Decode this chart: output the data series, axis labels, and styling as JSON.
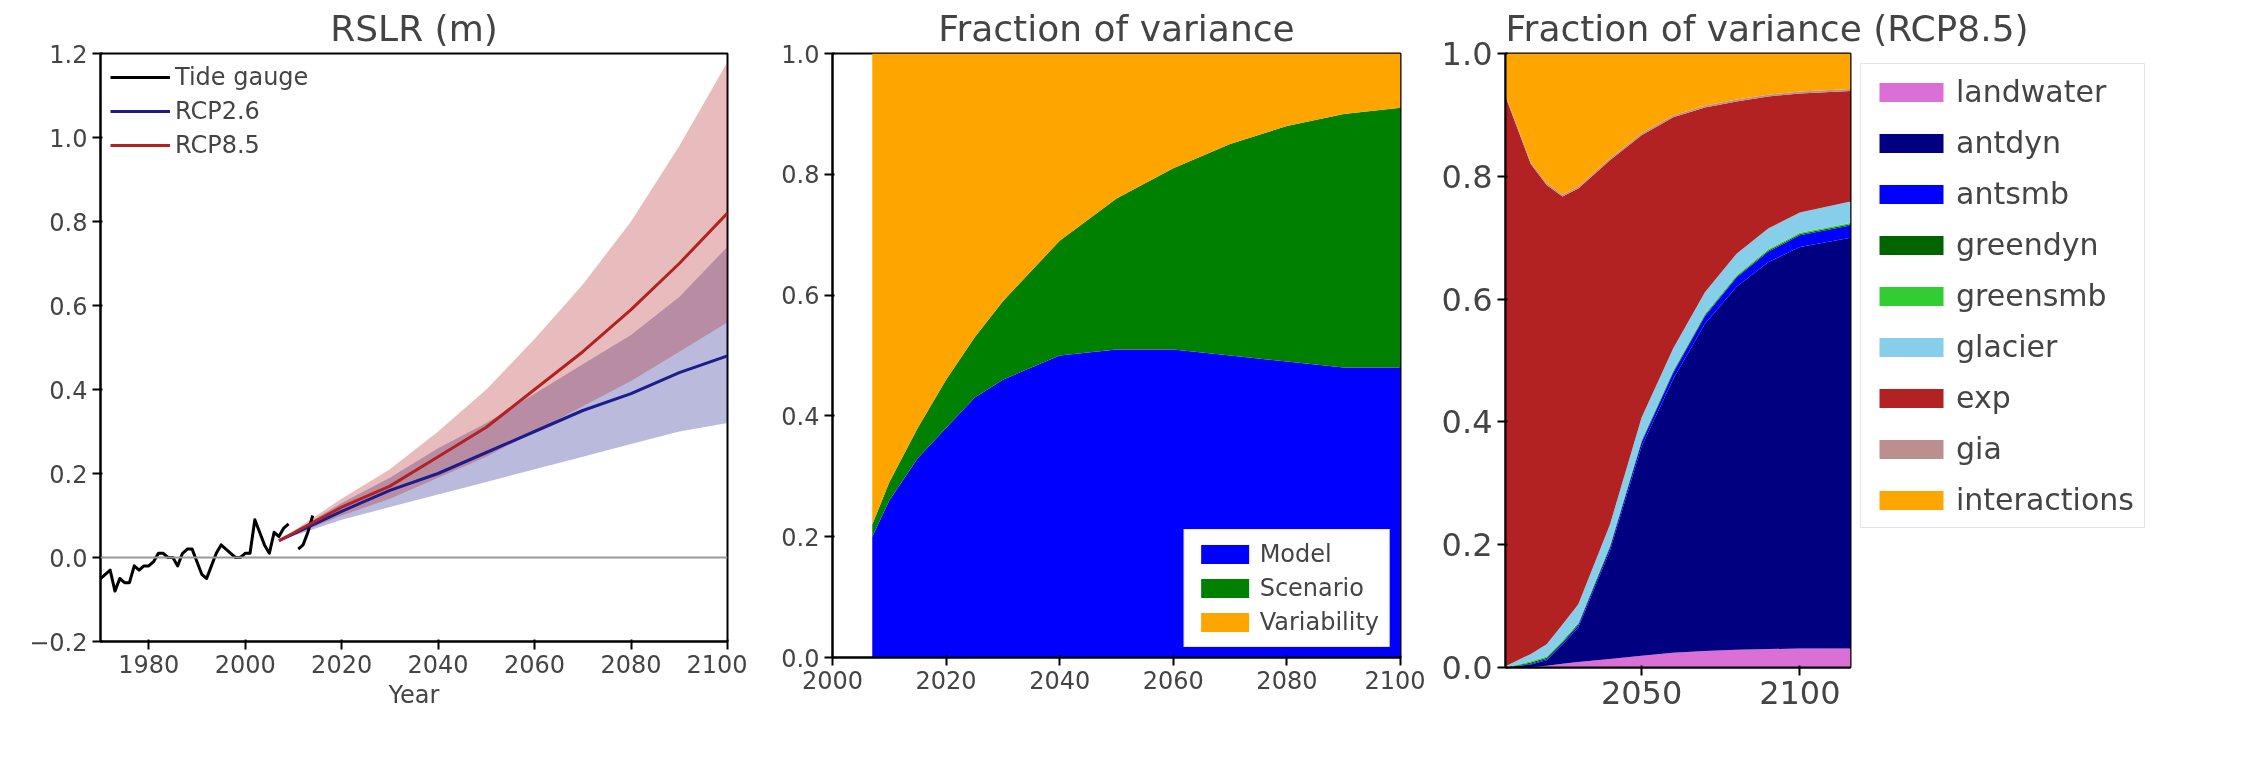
{
  "chart_data": [
    {
      "type": "line",
      "title": "RSLR (m)",
      "xlabel": "Year",
      "xlim": [
        1970,
        2100
      ],
      "xticks": [
        1980,
        2000,
        2020,
        2040,
        2060,
        2080,
        2100
      ],
      "ylim": [
        -0.2,
        1.2
      ],
      "yticks": [
        {
          "value": -0.2,
          "label": "−0.2"
        },
        {
          "value": 0,
          "label": "0.0"
        },
        {
          "value": 0.2,
          "label": "0.2"
        },
        {
          "value": 0.4,
          "label": "0.4"
        },
        {
          "value": 0.6,
          "label": "0.6"
        },
        {
          "value": 0.8,
          "label": "0.8"
        },
        {
          "value": 1.0,
          "label": "1.0"
        },
        {
          "value": 1.2,
          "label": "1.2"
        }
      ],
      "grid": false,
      "legend": "top left",
      "ref_lines": [
        {
          "axis": "y",
          "value": 0,
          "color": "#999999"
        }
      ],
      "series": [
        {
          "name": "Tide gauge",
          "color": "#000000",
          "x": [
            1970,
            1971,
            1972,
            1973,
            1974,
            1975,
            1976,
            1977,
            1978,
            1979,
            1980,
            1981,
            1982,
            1983,
            1984,
            1985,
            1986,
            1987,
            1988,
            1989,
            1990,
            1991,
            1992,
            1993,
            1994,
            1995,
            1996,
            1997,
            1998,
            1999,
            2000,
            2001,
            2002,
            2003,
            2004,
            2005,
            2006,
            2007,
            2008,
            2009,
            2010,
            2011,
            2012,
            2013,
            2014
          ],
          "values": [
            -0.05,
            -0.04,
            -0.03,
            -0.08,
            -0.05,
            -0.06,
            -0.06,
            -0.02,
            -0.03,
            -0.02,
            -0.02,
            -0.01,
            0.01,
            0.01,
            0.0,
            0.0,
            -0.02,
            0.01,
            0.02,
            0.02,
            -0.01,
            -0.04,
            -0.05,
            -0.02,
            0.01,
            0.03,
            0.02,
            0.01,
            0.0,
            0.0,
            0.01,
            0.01,
            0.09,
            0.06,
            0.03,
            0.01,
            0.06,
            0.05,
            0.07,
            0.08,
            null,
            0.02,
            0.03,
            0.06,
            0.1
          ]
        },
        {
          "name": "RCP2.6",
          "color": "#1c1c8c",
          "x": [
            2007,
            2020,
            2030,
            2040,
            2050,
            2060,
            2070,
            2080,
            2090,
            2100
          ],
          "values": [
            0.04,
            0.11,
            0.16,
            0.2,
            0.25,
            0.3,
            0.35,
            0.39,
            0.44,
            0.48
          ],
          "lower": [
            0.04,
            0.09,
            0.12,
            0.15,
            0.18,
            0.21,
            0.24,
            0.27,
            0.3,
            0.32
          ],
          "upper": [
            0.04,
            0.13,
            0.19,
            0.26,
            0.32,
            0.39,
            0.46,
            0.53,
            0.62,
            0.74
          ]
        },
        {
          "name": "RCP8.5",
          "color": "#b22222",
          "x": [
            2007,
            2020,
            2030,
            2040,
            2050,
            2060,
            2070,
            2080,
            2090,
            2100
          ],
          "values": [
            0.04,
            0.12,
            0.17,
            0.24,
            0.31,
            0.4,
            0.49,
            0.59,
            0.7,
            0.82
          ],
          "lower": [
            0.04,
            0.1,
            0.14,
            0.19,
            0.24,
            0.3,
            0.36,
            0.42,
            0.49,
            0.56
          ],
          "upper": [
            0.04,
            0.14,
            0.21,
            0.3,
            0.4,
            0.52,
            0.65,
            0.8,
            0.98,
            1.18
          ]
        }
      ]
    },
    {
      "type": "area",
      "stacked": true,
      "title": "Fraction of variance",
      "xlim": [
        2000,
        2100
      ],
      "xticks": [
        2000,
        2020,
        2040,
        2060,
        2080,
        2100
      ],
      "ylim": [
        0,
        1
      ],
      "yticks": [
        {
          "value": 0,
          "label": "0.0"
        },
        {
          "value": 0.2,
          "label": "0.2"
        },
        {
          "value": 0.4,
          "label": "0.4"
        },
        {
          "value": 0.6,
          "label": "0.6"
        },
        {
          "value": 0.8,
          "label": "0.8"
        },
        {
          "value": 1.0,
          "label": "1.0"
        }
      ],
      "grid": false,
      "legend": "bottom right",
      "x": [
        2007,
        2010,
        2015,
        2020,
        2025,
        2030,
        2040,
        2050,
        2060,
        2070,
        2080,
        2090,
        2100
      ],
      "series": [
        {
          "name": "Model",
          "color": "#0000ff",
          "values": [
            0.2,
            0.26,
            0.33,
            0.38,
            0.43,
            0.46,
            0.5,
            0.51,
            0.51,
            0.5,
            0.49,
            0.48,
            0.48
          ]
        },
        {
          "name": "Scenario",
          "color": "#008000",
          "values": [
            0.02,
            0.03,
            0.05,
            0.08,
            0.1,
            0.13,
            0.19,
            0.25,
            0.3,
            0.35,
            0.39,
            0.42,
            0.43
          ]
        },
        {
          "name": "Variability",
          "color": "#ffa500",
          "values": [
            0.78,
            0.71,
            0.62,
            0.54,
            0.47,
            0.41,
            0.31,
            0.24,
            0.19,
            0.15,
            0.12,
            0.1,
            0.09
          ]
        }
      ]
    },
    {
      "type": "area",
      "stacked": true,
      "title": "Fraction of variance (RCP8.5)",
      "xlim": [
        2007,
        2116
      ],
      "xticks": [
        2050,
        2100
      ],
      "ylim": [
        0,
        1
      ],
      "yticks": [
        {
          "value": 0,
          "label": "0.0"
        },
        {
          "value": 0.2,
          "label": "0.2"
        },
        {
          "value": 0.4,
          "label": "0.4"
        },
        {
          "value": 0.6,
          "label": "0.6"
        },
        {
          "value": 0.8,
          "label": "0.8"
        },
        {
          "value": 1.0,
          "label": "1.0"
        }
      ],
      "grid": false,
      "legend": "right",
      "x": [
        2007,
        2015,
        2020,
        2025,
        2030,
        2040,
        2050,
        2060,
        2070,
        2080,
        2090,
        2100,
        2116
      ],
      "series": [
        {
          "name": "landwater",
          "color": "#da70d6",
          "values": [
            0,
            0.001,
            0.003,
            0.006,
            0.009,
            0.014,
            0.019,
            0.024,
            0.027,
            0.029,
            0.03,
            0.031,
            0.031
          ]
        },
        {
          "name": "antdyn",
          "color": "#000080",
          "values": [
            0,
            0.004,
            0.009,
            0.031,
            0.056,
            0.176,
            0.341,
            0.446,
            0.533,
            0.591,
            0.63,
            0.654,
            0.669
          ]
        },
        {
          "name": "antsmb",
          "color": "#0000ff",
          "values": [
            0,
            0.001,
            0.002,
            0.003,
            0.004,
            0.005,
            0.007,
            0.01,
            0.012,
            0.015,
            0.017,
            0.019,
            0.02
          ]
        },
        {
          "name": "greendyn",
          "color": "#006400",
          "values": [
            0,
            0.002,
            0.002,
            0.002,
            0.002,
            0.002,
            0.002,
            0.002,
            0.002,
            0.002,
            0.002,
            0.002,
            0.002
          ]
        },
        {
          "name": "greensmb",
          "color": "#32cd32",
          "values": [
            0,
            0.002,
            0.002,
            0.002,
            0.002,
            0.002,
            0.002,
            0.002,
            0.002,
            0.002,
            0.002,
            0.002,
            0.002
          ]
        },
        {
          "name": "glacier",
          "color": "#87ceeb",
          "values": [
            0.002,
            0.012,
            0.02,
            0.026,
            0.03,
            0.034,
            0.036,
            0.036,
            0.035,
            0.035,
            0.034,
            0.033,
            0.035
          ]
        },
        {
          "name": "exp",
          "color": "#b22222",
          "values": [
            0.928,
            0.798,
            0.748,
            0.697,
            0.677,
            0.593,
            0.46,
            0.376,
            0.301,
            0.248,
            0.215,
            0.194,
            0.18
          ]
        },
        {
          "name": "gia",
          "color": "#bc8f8f",
          "values": [
            0.003,
            0.003,
            0.003,
            0.003,
            0.003,
            0.003,
            0.003,
            0.003,
            0.003,
            0.003,
            0.003,
            0.003,
            0.003
          ]
        },
        {
          "name": "interactions",
          "color": "#ffa500",
          "values": [
            0.067,
            0.177,
            0.211,
            0.23,
            0.217,
            0.171,
            0.13,
            0.101,
            0.085,
            0.075,
            0.067,
            0.062,
            0.058
          ]
        }
      ]
    }
  ]
}
